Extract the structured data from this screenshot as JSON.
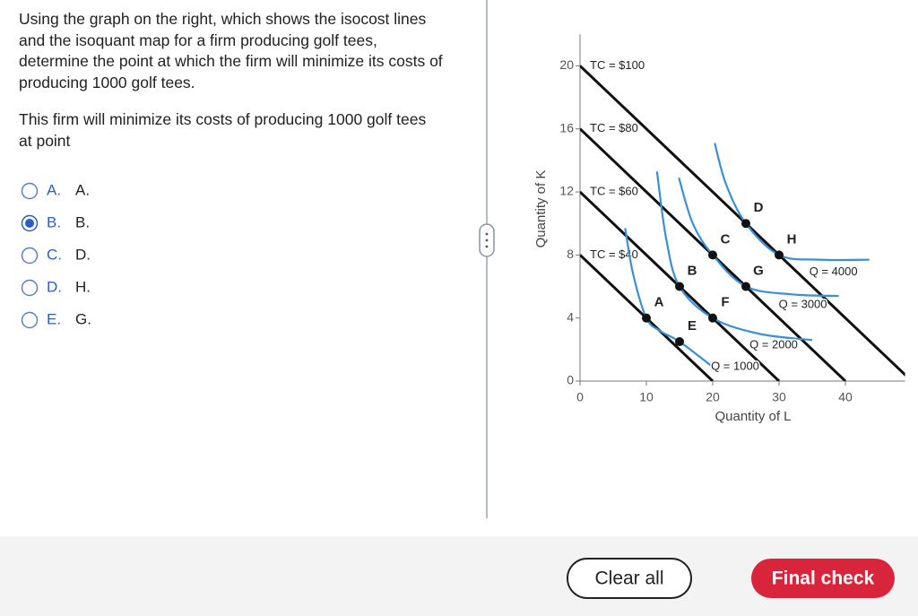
{
  "question": {
    "prompt": "Using the graph on the right, which shows the isocost lines and the isoquant map for a firm producing golf tees, determine the point at which the firm will minimize its costs of producing 1000 golf tees.",
    "lead": "This firm will minimize its costs of producing 1000 golf tees at point"
  },
  "options": [
    {
      "letter": "A.",
      "text": "A.",
      "selected": false
    },
    {
      "letter": "B.",
      "text": "B.",
      "selected": true
    },
    {
      "letter": "C.",
      "text": "D.",
      "selected": false
    },
    {
      "letter": "D.",
      "text": "H.",
      "selected": false
    },
    {
      "letter": "E.",
      "text": "G.",
      "selected": false
    }
  ],
  "chart_data": {
    "type": "line",
    "xlabel": "Quantity of L",
    "ylabel": "Quantity of K",
    "xlim": [
      0,
      49
    ],
    "ylim": [
      0,
      22
    ],
    "xticks": [
      0,
      10,
      20,
      30,
      40
    ],
    "yticks": [
      0,
      4,
      8,
      12,
      16,
      20
    ],
    "series": [
      {
        "name": "TC = $100",
        "color": "#111111",
        "x": [
          0,
          50
        ],
        "values": [
          20,
          0
        ]
      },
      {
        "name": "TC = $80",
        "color": "#111111",
        "x": [
          0,
          40
        ],
        "values": [
          16,
          0
        ]
      },
      {
        "name": "TC = $60",
        "color": "#111111",
        "x": [
          0,
          30
        ],
        "values": [
          12,
          0
        ]
      },
      {
        "name": "TC = $40",
        "color": "#111111",
        "x": [
          0,
          20
        ],
        "values": [
          8,
          0
        ]
      },
      {
        "name": "Q = 1000",
        "color": "#3a8fdb",
        "x": [
          6.8,
          8,
          10,
          12,
          15,
          20
        ],
        "values": [
          9.7,
          6.8,
          4,
          3.2,
          2.5,
          0.9
        ]
      },
      {
        "name": "Q = 2000",
        "color": "#3a8fdb",
        "x": [
          11.6,
          13,
          15,
          20,
          27,
          35
        ],
        "values": [
          13.3,
          9,
          6,
          4,
          3,
          2.6
        ]
      },
      {
        "name": "Q = 3000",
        "color": "#3a8fdb",
        "x": [
          14.9,
          17,
          20,
          25,
          32,
          39
        ],
        "values": [
          12.9,
          10,
          8,
          6,
          5.5,
          5.4
        ]
      },
      {
        "name": "Q = 4000",
        "color": "#3a8fdb",
        "x": [
          20.3,
          22,
          25,
          30,
          36,
          43.6
        ],
        "values": [
          15.1,
          12.5,
          10,
          8,
          7.7,
          7.7
        ]
      }
    ],
    "points": [
      {
        "label": "A",
        "x": 10,
        "y": 4
      },
      {
        "label": "B",
        "x": 15,
        "y": 6
      },
      {
        "label": "C",
        "x": 20,
        "y": 8
      },
      {
        "label": "D",
        "x": 25,
        "y": 10
      },
      {
        "label": "E",
        "x": 15,
        "y": 2.5
      },
      {
        "label": "F",
        "x": 20,
        "y": 4
      },
      {
        "label": "G",
        "x": 25,
        "y": 6
      },
      {
        "label": "H",
        "x": 30,
        "y": 8
      }
    ]
  },
  "buttons": {
    "clear": "Clear all",
    "check": "Final check"
  }
}
